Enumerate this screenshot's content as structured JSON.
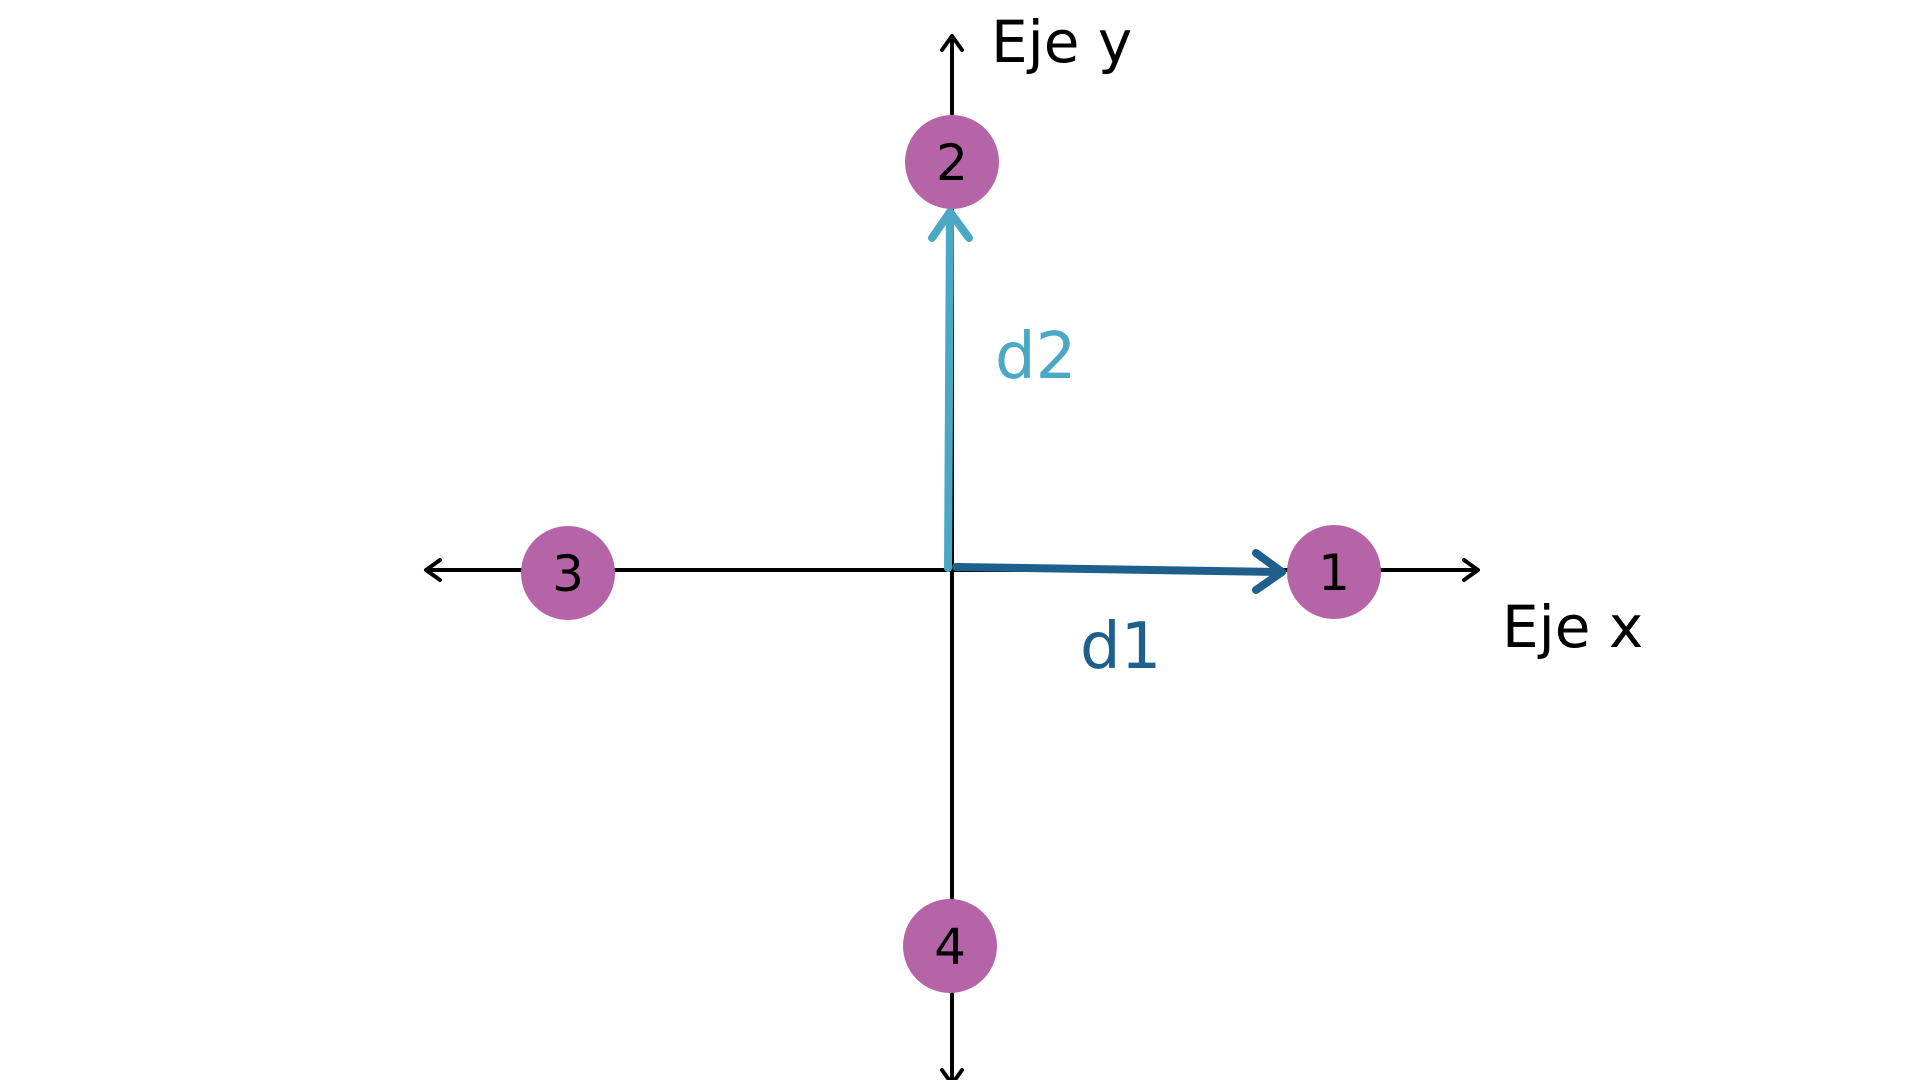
{
  "axes": {
    "x_label": "Eje x",
    "y_label": "Eje y",
    "color": "#000000"
  },
  "vectors": [
    {
      "label": "d1",
      "color": "#1f5f8b",
      "from": "origin",
      "to": "1"
    },
    {
      "label": "d2",
      "color": "#4aa8c4",
      "from": "origin",
      "to": "2"
    }
  ],
  "nodes": [
    {
      "label": "1",
      "color": "#b565a7"
    },
    {
      "label": "2",
      "color": "#b565a7"
    },
    {
      "label": "3",
      "color": "#b565a7"
    },
    {
      "label": "4",
      "color": "#b565a7"
    }
  ]
}
